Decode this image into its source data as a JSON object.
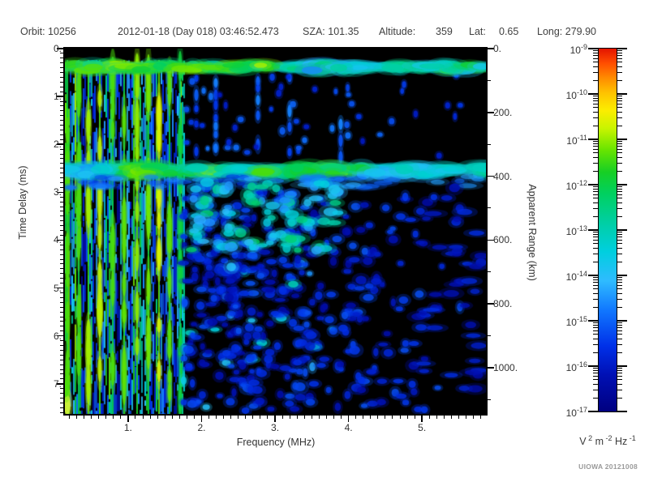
{
  "header": {
    "orbit": "Orbit: 10256",
    "datetime": "2012-01-18 (Day 018) 03:46:52.473",
    "sza": "SZA: 101.35",
    "altitude_label": "Altitude:",
    "altitude_value": "359",
    "lat_label": "Lat:",
    "lat_value": "0.65",
    "long": "Long: 279.90"
  },
  "credit": "UIOWA 20121008",
  "chart_data": {
    "type": "heatmap",
    "subtype": "radar-sounder-ionogram-spectrogram",
    "x_axis": {
      "label": "Frequency (MHz)",
      "range": [
        0.14,
        5.87
      ],
      "major_ticks": [
        1,
        2,
        3,
        4,
        5
      ],
      "tick_labels": [
        "1.",
        "2.",
        "3.",
        "4.",
        "5."
      ],
      "minor_tick_step": 0.1
    },
    "y_axis": {
      "label": "Time Delay (ms)",
      "range": [
        0,
        7.63
      ],
      "direction": "down",
      "major_ticks": [
        0,
        1,
        2,
        3,
        4,
        5,
        6,
        7
      ],
      "tick_labels": [
        "0.",
        "1.",
        "2.",
        "3.",
        "4.",
        "5.",
        "6.",
        "7."
      ],
      "minor_tick_step": 0.1
    },
    "y2_axis": {
      "label": "Apparent Range (km)",
      "range": [
        0,
        1145
      ],
      "major_ticks": [
        0,
        200,
        400,
        600,
        800,
        1000
      ],
      "tick_labels": [
        "0.",
        "200.",
        "400.",
        "600.",
        "800.",
        "1000."
      ],
      "minor_ticks": [
        100,
        300,
        500,
        700,
        900,
        1100
      ]
    },
    "colorbar": {
      "scale": "log",
      "max": "1e-9",
      "min": "1e-17",
      "exponents": [
        "-9",
        "-10",
        "-11",
        "-12",
        "-13",
        "-14",
        "-15",
        "-16",
        "-17"
      ],
      "unit_parts": [
        {
          "base": "V",
          "exp": "2"
        },
        {
          "base": "m",
          "exp": "-2"
        },
        {
          "base": "Hz",
          "exp": "-1"
        }
      ],
      "colormap": [
        [
          0.0,
          "#000080"
        ],
        [
          0.1,
          "#0010b4"
        ],
        [
          0.18,
          "#0030e8"
        ],
        [
          0.28,
          "#1178ff"
        ],
        [
          0.36,
          "#2fbbff"
        ],
        [
          0.44,
          "#00cfdf"
        ],
        [
          0.52,
          "#00cfa4"
        ],
        [
          0.6,
          "#00d060"
        ],
        [
          0.66,
          "#17cf24"
        ],
        [
          0.72,
          "#67e400"
        ],
        [
          0.78,
          "#c8f400"
        ],
        [
          0.83,
          "#fced00"
        ],
        [
          0.88,
          "#ffc000"
        ],
        [
          0.92,
          "#ff8a00"
        ],
        [
          0.96,
          "#ff4d00"
        ],
        [
          1.0,
          "#e31400"
        ]
      ],
      "background": "#000000"
    },
    "features": [
      {
        "name": "transmitter_leakage_band",
        "delay_ms": [
          0.28,
          0.6
        ],
        "freq_mhz": [
          0.14,
          5.87
        ],
        "color": "cyan-green, brighter below 2 MHz"
      },
      {
        "name": "surface_reflection_band",
        "delay_ms": [
          2.35,
          2.75
        ],
        "apparent_range_km": 375,
        "freq_mhz": [
          0.14,
          5.87
        ],
        "color": "cyan with green patches 0.8-3.7 MHz"
      },
      {
        "name": "ionospheric_noise_stripes",
        "freq_mhz": [
          0.14,
          1.77
        ],
        "delay_ms": [
          0.3,
          7.63
        ],
        "color": "vertical green/cyan/blue stripes"
      },
      {
        "name": "bright_harmonic_lines_mhz",
        "values": [
          0.16,
          0.32,
          0.45,
          0.6,
          0.78,
          0.93,
          1.1,
          1.27,
          1.41,
          1.55,
          1.7
        ]
      },
      {
        "name": "dotted_echo_columns_mhz",
        "values": [
          1.93,
          2.19,
          2.77,
          3.2,
          3.9
        ],
        "delay_ms": [
          0.5,
          1.9
        ]
      },
      {
        "name": "diffuse_oblique_scatter",
        "delay_ms": [
          2.8,
          7.6
        ],
        "freq_mhz": [
          1.8,
          5.3
        ],
        "color": "dark blue blobs, density decreasing with frequency"
      }
    ]
  }
}
